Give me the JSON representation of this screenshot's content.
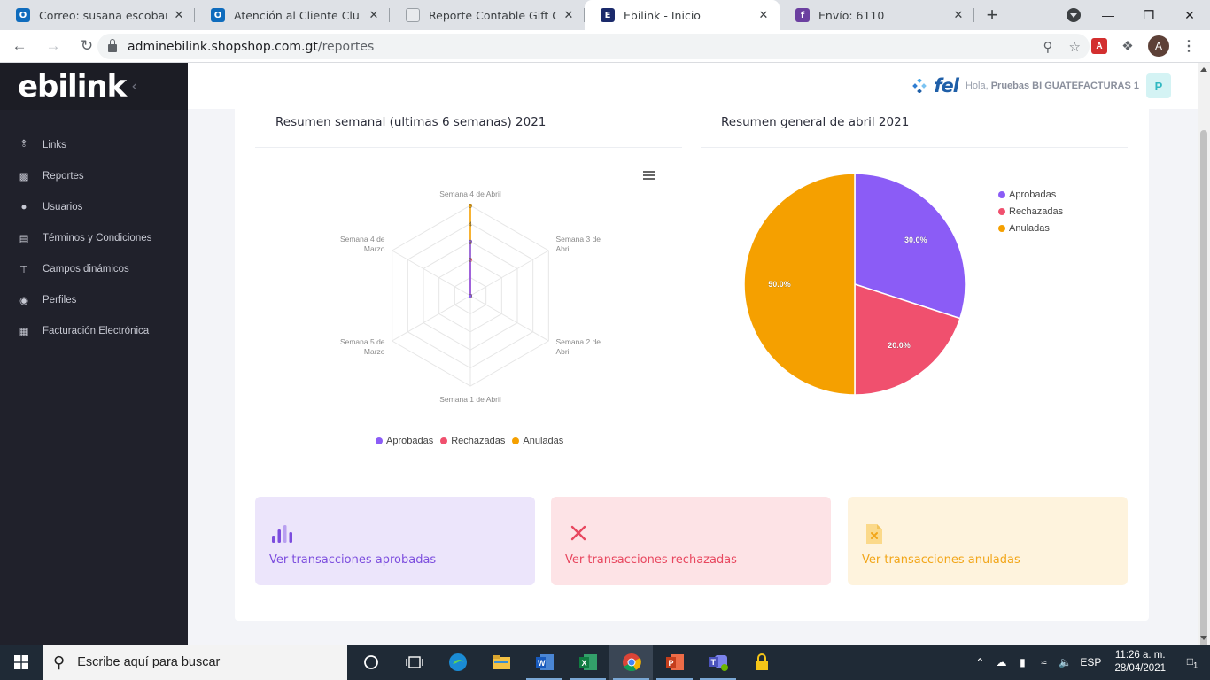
{
  "browser": {
    "tabs": [
      {
        "title": "Correo: susana escobar - Out",
        "color": "#0f6cbd",
        "glyph": "O"
      },
      {
        "title": "Atención al Cliente Club de C",
        "color": "#0f6cbd",
        "glyph": "O"
      },
      {
        "title": "Reporte Contable Gift Cards -",
        "color": "#e8eaed",
        "glyph": ""
      },
      {
        "title": "Ebilink - Inicio",
        "color": "#1b2a6b",
        "glyph": "E"
      },
      {
        "title": "Envío: 6110",
        "color": "#6b3fa0",
        "glyph": "f"
      }
    ],
    "address_domain": "adminebilink.shopshop.com.gt",
    "address_path": "/reportes",
    "profile_initial": "A"
  },
  "app": {
    "brand": "ebilink",
    "nav": [
      {
        "label": "Links",
        "icon": "share-icon"
      },
      {
        "label": "Reportes",
        "icon": "bar-chart-icon"
      },
      {
        "label": "Usuarios",
        "icon": "users-icon"
      },
      {
        "label": "Términos y Condiciones",
        "icon": "document-icon"
      },
      {
        "label": "Campos dinámicos",
        "icon": "fields-icon"
      },
      {
        "label": "Perfiles",
        "icon": "profiles-icon"
      },
      {
        "label": "Facturación Electrónica",
        "icon": "invoice-icon"
      }
    ],
    "header": {
      "logo_text": "fel",
      "greeting_prefix": "Hola,",
      "user_name": "Pruebas BI GUATEFACTURAS 1",
      "user_initial": "P"
    }
  },
  "panels": {
    "weekly_title": "Resumen semanal (ultimas 6 semanas) 2021",
    "general_title": "Resumen general de abril 2021"
  },
  "chart_data": [
    {
      "type": "radar",
      "title": "Resumen semanal (ultimas 6 semanas) 2021",
      "categories": [
        "Semana 4 de Abril",
        "Semana 3 de Abril",
        "Semana 2 de Abril",
        "Semana 1 de Abril",
        "Semana 5 de Marzo",
        "Semana 4 de Marzo"
      ],
      "radial_ticks": [
        "0",
        "2",
        "3",
        "4",
        "5"
      ],
      "radial_max": 5,
      "series": [
        {
          "name": "Aprobadas",
          "color": "#8b5cf6",
          "values": [
            3,
            0,
            0,
            0,
            0,
            0
          ]
        },
        {
          "name": "Rechazadas",
          "color": "#f0506e",
          "values": [
            2,
            0,
            0,
            0,
            0,
            0
          ]
        },
        {
          "name": "Anuladas",
          "color": "#f5a000",
          "values": [
            5,
            0,
            0,
            0,
            0,
            0
          ]
        }
      ],
      "legend": "bottom"
    },
    {
      "type": "pie",
      "title": "Resumen general de abril 2021",
      "slices": [
        {
          "name": "Aprobadas",
          "value": 30.0,
          "label": "30.0%",
          "color": "#8b5cf6"
        },
        {
          "name": "Rechazadas",
          "value": 20.0,
          "label": "20.0%",
          "color": "#f0506e"
        },
        {
          "name": "Anuladas",
          "value": 50.0,
          "label": "50.0%",
          "color": "#f5a000"
        }
      ],
      "legend": "right"
    }
  ],
  "tiles": [
    {
      "label": "Ver transacciones aprobadas",
      "bg": "#ece5fb",
      "fg": "#7c4dde"
    },
    {
      "label": "Ver transacciones rechazadas",
      "bg": "#fde3e6",
      "fg": "#e8475f"
    },
    {
      "label": "Ver transacciones anuladas",
      "bg": "#fef3dd",
      "fg": "#f2a619"
    }
  ],
  "taskbar": {
    "search_placeholder": "Escribe aquí para buscar",
    "lang": "ESP",
    "time": "11:26 a. m.",
    "date": "28/04/2021",
    "notifications": "1"
  }
}
